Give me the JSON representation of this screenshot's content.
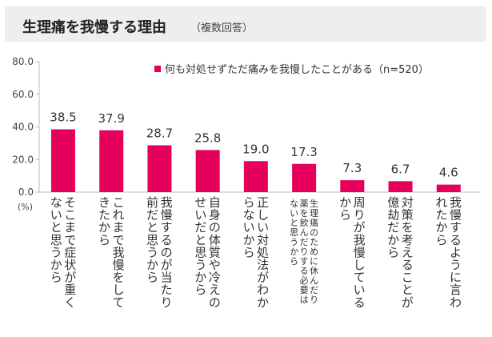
{
  "header": {
    "title": "生理痛を我慢する理由",
    "subtitle": "（複数回答）"
  },
  "chart_data": {
    "type": "bar",
    "unit_label": "(%)",
    "ylim": [
      0,
      80
    ],
    "yticks": [
      "0.0",
      "20.0",
      "40.0",
      "60.0",
      "80.0"
    ],
    "ytick_values": [
      0,
      20,
      40,
      60,
      80
    ],
    "legend": {
      "label": "何も対処せずただ痛みを我慢したことがある（n=520）",
      "position": "top-right"
    },
    "bar_color": "#e6005c",
    "categories": [
      "そこまで症状が重くないと思うから",
      "これまで我慢をしてきたから",
      "我慢するのが当たり前だと思うから",
      "自身の体質や冷えのせいだと思うから",
      "正しい対処法がわからないから",
      "生理痛のために休んだり薬を飲んだりする必要はないと思うから",
      "周りが我慢しているから",
      "対策を考えることが億劫だから",
      "我慢するように言われたから"
    ],
    "category_lines": [
      [
        "そこまで症状が重く",
        "ないと思うから"
      ],
      [
        "これまで我慢をして",
        "きたから"
      ],
      [
        "我慢するのが当たり",
        "前だと思うから"
      ],
      [
        "自身の体質や冷えの",
        "せいだと思うから"
      ],
      [
        "正しい対処法がわか",
        "らないから"
      ],
      [
        "生理痛のために休んだり",
        "薬を飲んだりする必要は",
        "ないと思うから"
      ],
      [
        "周りが我慢している",
        "から"
      ],
      [
        "対策を考えることが",
        "億劫だから"
      ],
      [
        "我慢するように言わ",
        "れたから"
      ]
    ],
    "values": [
      38.5,
      37.9,
      28.7,
      25.8,
      19.0,
      17.3,
      7.3,
      6.7,
      4.6
    ],
    "value_labels": [
      "38.5",
      "37.9",
      "28.7",
      "25.8",
      "19.0",
      "17.3",
      "7.3",
      "6.7",
      "4.6"
    ]
  }
}
